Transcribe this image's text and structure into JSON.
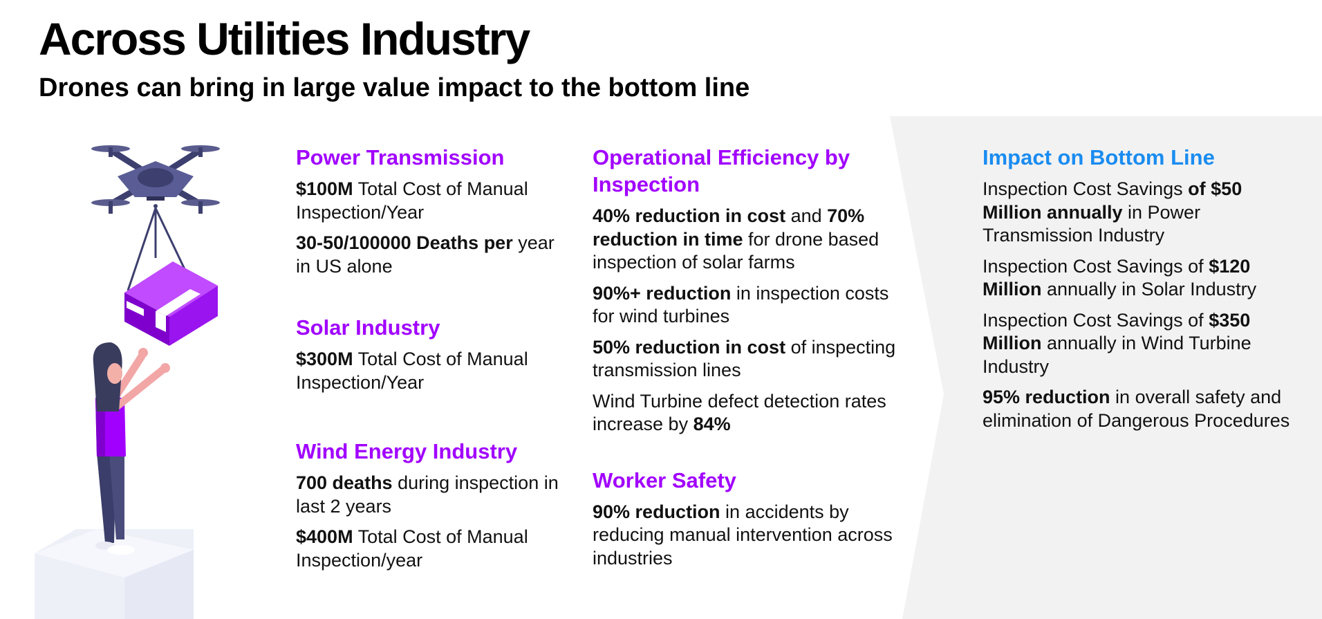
{
  "header": {
    "title": "Across Utilities Industry",
    "subtitle": "Drones can bring in large value impact to the bottom line"
  },
  "colors": {
    "accent_purple": "#a100ff",
    "accent_blue": "#1a8cf0",
    "panel_gray": "#f2f2f2"
  },
  "illustration": {
    "icon": "drone-delivery-illustration"
  },
  "column1": {
    "power": {
      "heading": "Power Transmission",
      "p1": {
        "b1": "$100M",
        "t1": " Total Cost of Manual Inspection/Year"
      },
      "p2": {
        "b1": "30-50/100000 Deaths per",
        "t1": " year in US alone"
      }
    },
    "solar": {
      "heading": "Solar Industry",
      "p1": {
        "b1": "$300M",
        "t1": " Total Cost of Manual Inspection/Year"
      }
    },
    "wind": {
      "heading": "Wind Energy Industry",
      "p1": {
        "b1": "700 deaths",
        "t1": " during inspection in last 2 years"
      },
      "p2": {
        "b1": "$400M",
        "t1": " Total Cost of Manual Inspection/year"
      }
    }
  },
  "column2": {
    "efficiency": {
      "heading": "Operational Efficiency by Inspection",
      "p1": {
        "b1": "40% reduction in cost",
        "t1": " and ",
        "b2": "70% reduction in time",
        "t2": " for drone based inspection of solar farms"
      },
      "p2": {
        "b1": "90%+ reduction",
        "t1": " in inspection costs for wind turbines"
      },
      "p3": {
        "b1": "50% reduction in cost",
        "t1": " of inspecting transmission lines"
      },
      "p4": {
        "t1": "Wind Turbine defect detection rates increase by ",
        "b1": "84%"
      }
    },
    "safety": {
      "heading": "Worker Safety",
      "p1": {
        "b1": "90% reduction",
        "t1": " in accidents by reducing manual intervention across industries"
      }
    }
  },
  "column3": {
    "heading": "Impact on Bottom Line",
    "p1": {
      "t1": "Inspection Cost Savings ",
      "b1": "of $50 Million annually",
      "t2": " in Power Transmission Industry"
    },
    "p2": {
      "t1": "Inspection Cost Savings of ",
      "b1": "$120 Million",
      "t2": " annually in Solar Industry"
    },
    "p3": {
      "t1": "Inspection Cost Savings of ",
      "b1": "$350 Million",
      "t2": " annually in Wind Turbine Industry"
    },
    "p4": {
      "b1": "95% reduction",
      "t1": " in overall safety and elimination of Dangerous Procedures"
    }
  }
}
